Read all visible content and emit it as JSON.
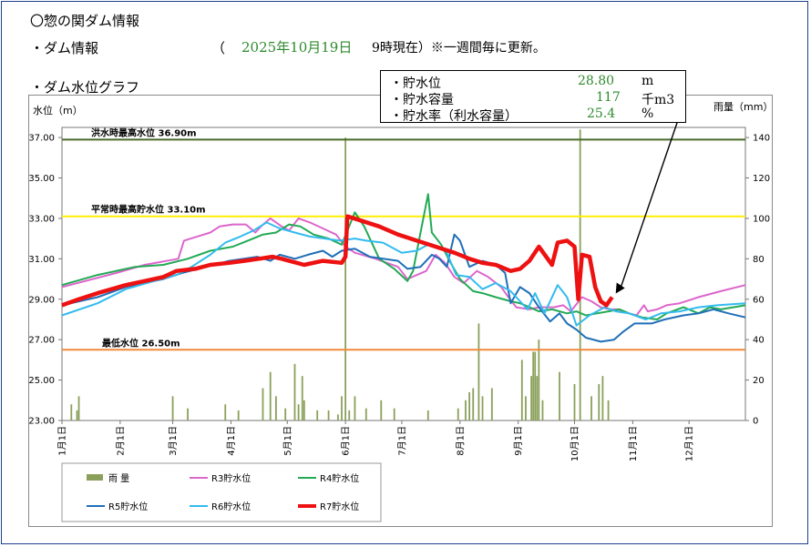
{
  "header": {
    "title": "〇惣の関ダム情報",
    "dam_info_label": "・ダム情報",
    "date_open": "（",
    "date": "2025年10月19日",
    "time": "9時現在）※一週間毎に更新。",
    "graph_label": "・ダム水位グラフ"
  },
  "info": {
    "rows": [
      {
        "label": "・貯水位",
        "value": "28.80",
        "unit": "m"
      },
      {
        "label": "・貯水容量",
        "value": "117",
        "unit": "千m3"
      },
      {
        "label": "・貯水率（利水容量）",
        "value": "25.4",
        "unit": "%"
      }
    ]
  },
  "chart_data": {
    "type": "line",
    "ylabel": "水位（m）",
    "y2label": "雨量（mm）",
    "ylim": [
      23.0,
      37.5
    ],
    "y2lim": [
      0,
      145
    ],
    "yticks": [
      "23.00",
      "25.00",
      "27.00",
      "29.00",
      "31.00",
      "33.00",
      "35.00",
      "37.00"
    ],
    "y2ticks": [
      "0",
      "20",
      "40",
      "60",
      "80",
      "100",
      "120",
      "140"
    ],
    "x_unit": "day_of_year",
    "xlim": [
      1,
      365
    ],
    "months": [
      {
        "label": "1月1日",
        "day": 1
      },
      {
        "label": "2月1日",
        "day": 32
      },
      {
        "label": "3月1日",
        "day": 60
      },
      {
        "label": "4月1日",
        "day": 91
      },
      {
        "label": "5月1日",
        "day": 121
      },
      {
        "label": "6月1日",
        "day": 152
      },
      {
        "label": "7月1日",
        "day": 182
      },
      {
        "label": "8月1日",
        "day": 213
      },
      {
        "label": "9月1日",
        "day": 244
      },
      {
        "label": "10月1日",
        "day": 274
      },
      {
        "label": "11月1日",
        "day": 305
      },
      {
        "label": "12月1日",
        "day": 335
      }
    ],
    "reference_lines": [
      {
        "label": "洪水時最高水位 36.90m",
        "value": 36.9,
        "color": "#4a6b2a"
      },
      {
        "label": "平常時最高貯水位 33.10m",
        "value": 33.1,
        "color": "#ffee00"
      },
      {
        "label": "最低水位 26.50m",
        "value": 26.5,
        "color": "#f08a3c"
      }
    ],
    "rain": {
      "name": "雨 量",
      "color": "#8aa05a",
      "points": [
        [
          6,
          8
        ],
        [
          9,
          5
        ],
        [
          10,
          12
        ],
        [
          60,
          12
        ],
        [
          68,
          6
        ],
        [
          88,
          8
        ],
        [
          95,
          5
        ],
        [
          108,
          16
        ],
        [
          112,
          24
        ],
        [
          115,
          12
        ],
        [
          120,
          6
        ],
        [
          125,
          28
        ],
        [
          127,
          8
        ],
        [
          129,
          22
        ],
        [
          130,
          10
        ],
        [
          137,
          5
        ],
        [
          143,
          5
        ],
        [
          148,
          3
        ],
        [
          150,
          12
        ],
        [
          152,
          140
        ],
        [
          154,
          5
        ],
        [
          157,
          12
        ],
        [
          163,
          6
        ],
        [
          171,
          10
        ],
        [
          178,
          6
        ],
        [
          196,
          5
        ],
        [
          212,
          6
        ],
        [
          216,
          10
        ],
        [
          218,
          14
        ],
        [
          220,
          16
        ],
        [
          223,
          48
        ],
        [
          225,
          12
        ],
        [
          230,
          16
        ],
        [
          246,
          30
        ],
        [
          248,
          12
        ],
        [
          251,
          22
        ],
        [
          252,
          34
        ],
        [
          253,
          34
        ],
        [
          254,
          22
        ],
        [
          255,
          40
        ],
        [
          257,
          10
        ],
        [
          266,
          24
        ],
        [
          274,
          18
        ],
        [
          277,
          144
        ],
        [
          283,
          12
        ],
        [
          287,
          18
        ],
        [
          289,
          22
        ],
        [
          292,
          10
        ]
      ]
    },
    "series": [
      {
        "name": "R3貯水位",
        "color": "#dd66cc",
        "width": 2,
        "points": [
          [
            1,
            29.6
          ],
          [
            30,
            30.3
          ],
          [
            45,
            30.7
          ],
          [
            63,
            31.0
          ],
          [
            66,
            31.9
          ],
          [
            73,
            32.1
          ],
          [
            80,
            32.3
          ],
          [
            85,
            32.6
          ],
          [
            92,
            32.7
          ],
          [
            99,
            32.7
          ],
          [
            104,
            32.3
          ],
          [
            107,
            32.6
          ],
          [
            112,
            33.0
          ],
          [
            118,
            32.6
          ],
          [
            122,
            32.4
          ],
          [
            127,
            33.0
          ],
          [
            133,
            32.8
          ],
          [
            140,
            32.5
          ],
          [
            147,
            32.2
          ],
          [
            152,
            31.6
          ],
          [
            157,
            31.3
          ],
          [
            168,
            31.0
          ],
          [
            180,
            30.6
          ],
          [
            185,
            30.0
          ],
          [
            195,
            30.4
          ],
          [
            200,
            31.2
          ],
          [
            205,
            30.8
          ],
          [
            210,
            30.1
          ],
          [
            215,
            29.8
          ],
          [
            222,
            30.4
          ],
          [
            228,
            30.1
          ],
          [
            235,
            29.6
          ],
          [
            238,
            29.2
          ],
          [
            243,
            28.6
          ],
          [
            250,
            28.5
          ],
          [
            255,
            28.6
          ],
          [
            263,
            28.6
          ],
          [
            268,
            28.7
          ],
          [
            272,
            28.4
          ],
          [
            278,
            29.1
          ],
          [
            283,
            28.9
          ],
          [
            288,
            28.6
          ],
          [
            293,
            28.5
          ],
          [
            297,
            28.5
          ],
          [
            300,
            28.4
          ],
          [
            303,
            28.3
          ],
          [
            307,
            28.2
          ],
          [
            311,
            28.7
          ],
          [
            313,
            28.4
          ],
          [
            318,
            28.5
          ],
          [
            323,
            28.7
          ],
          [
            330,
            28.8
          ],
          [
            340,
            29.1
          ],
          [
            352,
            29.4
          ],
          [
            365,
            29.7
          ]
        ]
      },
      {
        "name": "R4貯水位",
        "color": "#22aa55",
        "width": 2,
        "points": [
          [
            1,
            29.7
          ],
          [
            20,
            30.2
          ],
          [
            40,
            30.6
          ],
          [
            55,
            30.7
          ],
          [
            68,
            31.0
          ],
          [
            80,
            31.4
          ],
          [
            92,
            31.6
          ],
          [
            100,
            31.9
          ],
          [
            108,
            32.2
          ],
          [
            115,
            32.3
          ],
          [
            122,
            32.7
          ],
          [
            128,
            32.6
          ],
          [
            135,
            32.2
          ],
          [
            143,
            32.0
          ],
          [
            150,
            31.7
          ],
          [
            157,
            33.3
          ],
          [
            162,
            32.6
          ],
          [
            170,
            31.0
          ],
          [
            178,
            30.5
          ],
          [
            185,
            29.9
          ],
          [
            188,
            30.4
          ],
          [
            192,
            32.3
          ],
          [
            196,
            34.2
          ],
          [
            198,
            32.3
          ],
          [
            203,
            31.7
          ],
          [
            208,
            30.8
          ],
          [
            213,
            30.0
          ],
          [
            220,
            29.4
          ],
          [
            225,
            29.3
          ],
          [
            232,
            29.1
          ],
          [
            240,
            28.9
          ],
          [
            245,
            28.8
          ],
          [
            250,
            28.6
          ],
          [
            255,
            28.4
          ],
          [
            262,
            28.5
          ],
          [
            270,
            28.3
          ],
          [
            275,
            28.4
          ],
          [
            280,
            28.2
          ],
          [
            286,
            28.3
          ],
          [
            292,
            28.4
          ],
          [
            298,
            28.5
          ],
          [
            303,
            28.3
          ],
          [
            310,
            28.1
          ],
          [
            318,
            28.0
          ],
          [
            323,
            28.3
          ],
          [
            332,
            28.6
          ],
          [
            340,
            28.3
          ],
          [
            346,
            28.6
          ],
          [
            352,
            28.5
          ],
          [
            365,
            28.7
          ]
        ]
      },
      {
        "name": "R5貯水位",
        "color": "#1f6fb8",
        "width": 2,
        "points": [
          [
            1,
            28.7
          ],
          [
            20,
            29.1
          ],
          [
            35,
            29.6
          ],
          [
            55,
            30.0
          ],
          [
            65,
            30.3
          ],
          [
            78,
            30.6
          ],
          [
            90,
            30.9
          ],
          [
            105,
            31.1
          ],
          [
            112,
            30.9
          ],
          [
            117,
            31.2
          ],
          [
            125,
            31.0
          ],
          [
            132,
            31.2
          ],
          [
            140,
            31.4
          ],
          [
            145,
            31.1
          ],
          [
            150,
            31.4
          ],
          [
            157,
            31.5
          ],
          [
            165,
            31.1
          ],
          [
            180,
            30.9
          ],
          [
            185,
            30.5
          ],
          [
            192,
            30.6
          ],
          [
            198,
            31.2
          ],
          [
            202,
            31.0
          ],
          [
            206,
            30.6
          ],
          [
            210,
            32.2
          ],
          [
            213,
            31.9
          ],
          [
            218,
            30.6
          ],
          [
            225,
            30.9
          ],
          [
            232,
            30.7
          ],
          [
            237,
            30.3
          ],
          [
            240,
            28.8
          ],
          [
            245,
            29.6
          ],
          [
            250,
            29.3
          ],
          [
            255,
            28.6
          ],
          [
            261,
            27.9
          ],
          [
            266,
            28.3
          ],
          [
            270,
            27.8
          ],
          [
            275,
            27.5
          ],
          [
            280,
            27.1
          ],
          [
            288,
            26.9
          ],
          [
            295,
            27.0
          ],
          [
            300,
            27.4
          ],
          [
            306,
            27.8
          ],
          [
            315,
            27.8
          ],
          [
            322,
            28.0
          ],
          [
            332,
            28.2
          ],
          [
            340,
            28.3
          ],
          [
            348,
            28.5
          ],
          [
            356,
            28.3
          ],
          [
            365,
            28.1
          ]
        ]
      },
      {
        "name": "R6貯水位",
        "color": "#33bbee",
        "width": 2,
        "points": [
          [
            1,
            28.2
          ],
          [
            20,
            28.8
          ],
          [
            35,
            29.5
          ],
          [
            50,
            29.9
          ],
          [
            62,
            30.2
          ],
          [
            70,
            30.6
          ],
          [
            80,
            31.2
          ],
          [
            88,
            31.8
          ],
          [
            96,
            32.1
          ],
          [
            103,
            32.4
          ],
          [
            110,
            32.8
          ],
          [
            117,
            32.5
          ],
          [
            125,
            32.3
          ],
          [
            133,
            32.1
          ],
          [
            141,
            32.0
          ],
          [
            149,
            31.9
          ],
          [
            157,
            32.0
          ],
          [
            163,
            31.9
          ],
          [
            172,
            31.8
          ],
          [
            182,
            31.3
          ],
          [
            190,
            31.4
          ],
          [
            196,
            31.7
          ],
          [
            205,
            31.5
          ],
          [
            211,
            30.2
          ],
          [
            218,
            30.1
          ],
          [
            225,
            29.5
          ],
          [
            232,
            29.8
          ],
          [
            240,
            29.4
          ],
          [
            245,
            28.9
          ],
          [
            249,
            28.5
          ],
          [
            253,
            29.3
          ],
          [
            258,
            28.3
          ],
          [
            265,
            29.7
          ],
          [
            270,
            29.1
          ],
          [
            275,
            27.7
          ],
          [
            282,
            28.2
          ],
          [
            290,
            28.6
          ],
          [
            296,
            28.4
          ],
          [
            303,
            28.3
          ],
          [
            312,
            28.0
          ],
          [
            320,
            28.3
          ],
          [
            330,
            28.4
          ],
          [
            340,
            28.6
          ],
          [
            350,
            28.7
          ],
          [
            365,
            28.8
          ]
        ]
      },
      {
        "name": "R7貯水位",
        "color": "#ee1111",
        "width": 4.5,
        "points": [
          [
            1,
            28.7
          ],
          [
            10,
            29.0
          ],
          [
            20,
            29.3
          ],
          [
            35,
            29.7
          ],
          [
            45,
            29.9
          ],
          [
            55,
            30.1
          ],
          [
            62,
            30.4
          ],
          [
            72,
            30.5
          ],
          [
            80,
            30.7
          ],
          [
            90,
            30.8
          ],
          [
            98,
            30.9
          ],
          [
            106,
            31.0
          ],
          [
            113,
            31.1
          ],
          [
            118,
            31.0
          ],
          [
            122,
            30.9
          ],
          [
            130,
            30.7
          ],
          [
            140,
            30.9
          ],
          [
            150,
            30.8
          ],
          [
            152,
            31.1
          ],
          [
            153,
            33.1
          ],
          [
            160,
            32.9
          ],
          [
            170,
            32.6
          ],
          [
            180,
            32.2
          ],
          [
            190,
            31.9
          ],
          [
            200,
            31.6
          ],
          [
            210,
            31.3
          ],
          [
            218,
            31.0
          ],
          [
            225,
            30.8
          ],
          [
            232,
            30.7
          ],
          [
            240,
            30.4
          ],
          [
            245,
            30.5
          ],
          [
            250,
            30.9
          ],
          [
            255,
            31.6
          ],
          [
            262,
            30.7
          ],
          [
            265,
            31.8
          ],
          [
            270,
            31.9
          ],
          [
            274,
            31.6
          ],
          [
            276,
            29.0
          ],
          [
            278,
            31.2
          ],
          [
            282,
            31.1
          ],
          [
            285,
            29.6
          ],
          [
            288,
            28.9
          ],
          [
            291,
            28.7
          ],
          [
            294,
            29.1
          ]
        ]
      }
    ],
    "legend": [
      {
        "name": "雨 量",
        "color": "#8aa05a",
        "kind": "bar"
      },
      {
        "name": "R3貯水位",
        "color": "#dd66cc",
        "kind": "line"
      },
      {
        "name": "R4貯水位",
        "color": "#22aa55",
        "kind": "line"
      },
      {
        "name": "R5貯水位",
        "color": "#1f6fb8",
        "kind": "line"
      },
      {
        "name": "R6貯水位",
        "color": "#33bbee",
        "kind": "line"
      },
      {
        "name": "R7貯水位",
        "color": "#ee1111",
        "kind": "line"
      }
    ]
  }
}
